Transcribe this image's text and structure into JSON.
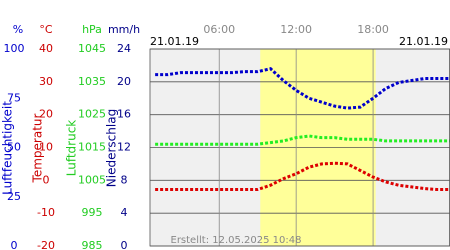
{
  "chart_data": {
    "type": "line",
    "date_left": "21.01.19",
    "date_right": "21.01.19",
    "footer": "Erstellt: 12.05.2025 10:48",
    "x": [
      1,
      2,
      3,
      4,
      5,
      6,
      7,
      8,
      9,
      10,
      11,
      12,
      13,
      14,
      15,
      16,
      17,
      18,
      19,
      20,
      21,
      22,
      23,
      24
    ],
    "xlim": [
      0.6,
      24
    ],
    "xticks": [
      {
        "value": 6,
        "label": "06:00"
      },
      {
        "value": 12,
        "label": "12:00"
      },
      {
        "value": 18,
        "label": "18:00"
      }
    ],
    "daylight": [
      9.2,
      18.2
    ],
    "axes": [
      {
        "unit": "%",
        "label": "Luftfeuchtigkeit",
        "color": "#0000cc",
        "lim": [
          0,
          100
        ],
        "ticks": [
          100,
          75,
          50,
          25,
          0
        ]
      },
      {
        "unit": "°C",
        "label": "Temperatur",
        "color": "#cc0000",
        "lim": [
          -20,
          40
        ],
        "ticks": [
          40,
          30,
          20,
          10,
          0,
          -10,
          -20
        ]
      },
      {
        "unit": "hPa",
        "label": "Luftdruck",
        "color": "#22cc22",
        "lim": [
          985,
          1045
        ],
        "ticks": [
          1045,
          1035,
          1025,
          1015,
          1005,
          995,
          985
        ]
      },
      {
        "unit": "mm/h",
        "label": "Niederschlag",
        "color": "#000088",
        "lim": [
          0,
          24
        ],
        "ticks": [
          24,
          20,
          16,
          12,
          8,
          4,
          0
        ]
      }
    ],
    "series": [
      {
        "axis": 0,
        "color": "#0000cc",
        "values": [
          87,
          87,
          88,
          88,
          88,
          88,
          88,
          88.5,
          88.5,
          90,
          84,
          79,
          75,
          73,
          71,
          70,
          70.5,
          75,
          80,
          83,
          84,
          85,
          85,
          85
        ]
      },
      {
        "axis": 1,
        "color": "#dd0000",
        "values": [
          -2.8,
          -2.8,
          -2.8,
          -2.8,
          -2.8,
          -2.8,
          -2.8,
          -2.8,
          -2.8,
          -1.5,
          0.5,
          2,
          4,
          5,
          5.2,
          5,
          3,
          1,
          -0.5,
          -1.5,
          -2,
          -2.5,
          -2.8,
          -2.8
        ]
      },
      {
        "axis": 2,
        "color": "#22ee22",
        "values": [
          1016,
          1016,
          1016,
          1016,
          1016,
          1016,
          1016,
          1016,
          1016,
          1016.5,
          1017,
          1018,
          1018.5,
          1018,
          1018,
          1017.5,
          1017.5,
          1017.5,
          1017,
          1017,
          1017,
          1017,
          1017,
          1017
        ]
      }
    ]
  }
}
